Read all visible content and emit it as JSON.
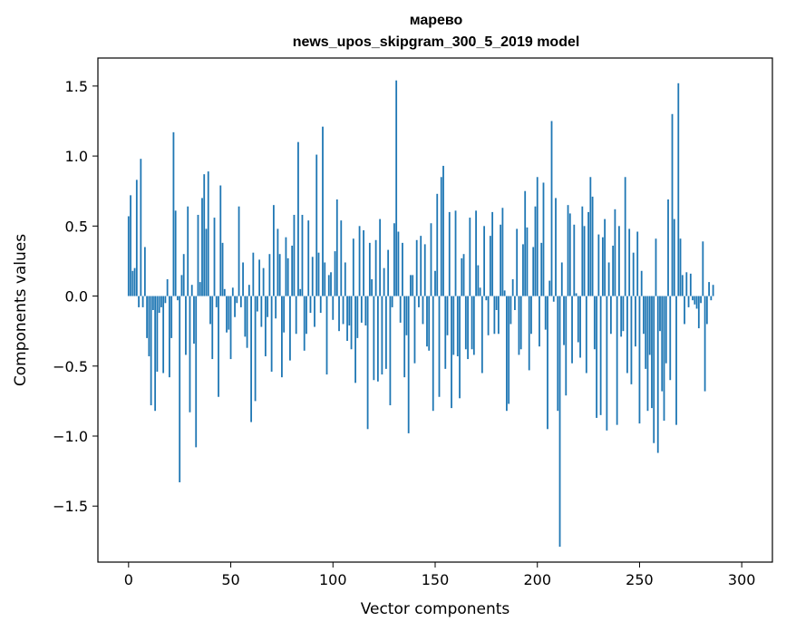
{
  "chart_data": {
    "type": "bar",
    "title": "марево",
    "subtitle": "news_upos_skipgram_300_5_2019 model",
    "xlabel": "Vector components",
    "ylabel": "Components values",
    "xlim": [
      -15,
      315
    ],
    "ylim": [
      -1.9,
      1.7
    ],
    "xticks": [
      0,
      50,
      100,
      150,
      200,
      250,
      300
    ],
    "yticks": [
      1.5,
      1.0,
      0.5,
      0.0,
      -0.5,
      -1.0,
      -1.5
    ],
    "ytick_labels": [
      "1.5",
      "1.0",
      "0.5",
      "0.0",
      "−0.5",
      "−1.0",
      "−1.5"
    ],
    "bar_color": "#1f77b4",
    "values": [
      0.57,
      0.72,
      0.18,
      0.2,
      0.83,
      -0.08,
      0.98,
      -0.08,
      0.35,
      -0.3,
      -0.43,
      -0.78,
      -0.1,
      -0.82,
      -0.54,
      -0.12,
      -0.08,
      -0.55,
      -0.05,
      0.12,
      -0.58,
      -0.3,
      1.17,
      0.61,
      -0.03,
      -1.33,
      0.15,
      0.3,
      -0.42,
      0.64,
      -0.83,
      0.08,
      -0.34,
      -1.08,
      0.58,
      0.1,
      0.7,
      0.87,
      0.48,
      0.89,
      -0.2,
      -0.45,
      0.56,
      -0.08,
      -0.72,
      0.79,
      0.38,
      0.05,
      -0.26,
      -0.24,
      -0.45,
      0.06,
      -0.15,
      -0.05,
      0.64,
      -0.08,
      0.24,
      -0.29,
      -0.37,
      0.08,
      -0.9,
      0.31,
      -0.75,
      -0.11,
      0.26,
      -0.22,
      0.2,
      -0.43,
      -0.15,
      0.3,
      -0.54,
      0.65,
      -0.16,
      0.48,
      0.3,
      -0.58,
      -0.26,
      0.42,
      0.27,
      -0.46,
      0.36,
      0.58,
      -0.27,
      1.1,
      0.05,
      0.58,
      -0.39,
      -0.27,
      0.54,
      -0.12,
      0.28,
      -0.22,
      1.01,
      0.31,
      -0.12,
      1.21,
      0.24,
      -0.56,
      0.15,
      0.17,
      -0.17,
      0.32,
      0.69,
      -0.25,
      0.54,
      -0.2,
      0.24,
      -0.32,
      -0.21,
      -0.38,
      0.41,
      -0.62,
      -0.3,
      0.5,
      -0.19,
      0.47,
      -0.21,
      -0.95,
      0.38,
      0.12,
      -0.6,
      0.4,
      -0.61,
      0.55,
      -0.56,
      0.2,
      -0.52,
      0.33,
      -0.78,
      -0.08,
      0.52,
      1.54,
      0.46,
      -0.19,
      0.38,
      -0.58,
      -0.28,
      -0.98,
      0.15,
      0.15,
      -0.48,
      0.4,
      -0.08,
      0.43,
      -0.2,
      0.37,
      -0.36,
      -0.39,
      0.52,
      -0.82,
      0.18,
      0.73,
      -0.72,
      0.85,
      0.93,
      -0.52,
      -0.28,
      0.6,
      -0.8,
      -0.42,
      0.61,
      -0.43,
      -0.73,
      0.27,
      0.3,
      -0.38,
      -0.45,
      0.56,
      -0.38,
      -0.42,
      0.61,
      0.22,
      0.06,
      -0.55,
      0.5,
      -0.03,
      -0.28,
      0.43,
      0.6,
      -0.27,
      -0.1,
      -0.27,
      0.51,
      0.63,
      0.04,
      -0.82,
      -0.77,
      -0.2,
      0.12,
      -0.1,
      0.48,
      -0.42,
      -0.38,
      0.37,
      0.75,
      0.49,
      -0.53,
      -0.27,
      0.35,
      0.64,
      0.85,
      -0.36,
      0.38,
      0.81,
      -0.24,
      -0.95,
      0.11,
      1.25,
      -0.04,
      0.7,
      -0.82,
      -1.79,
      0.24,
      -0.35,
      -0.71,
      0.65,
      0.59,
      -0.48,
      0.51,
      0.02,
      -0.33,
      -0.44,
      0.64,
      0.5,
      -0.55,
      0.6,
      0.85,
      0.71,
      -0.38,
      -0.87,
      0.44,
      -0.85,
      0.42,
      0.55,
      -0.96,
      0.24,
      -0.27,
      0.36,
      0.62,
      -0.92,
      0.5,
      -0.29,
      -0.25,
      0.85,
      -0.55,
      0.48,
      -0.63,
      0.31,
      -0.36,
      0.46,
      -0.91,
      0.18,
      -0.27,
      -0.52,
      -0.82,
      -0.42,
      -0.8,
      -1.05,
      0.41,
      -1.12,
      -0.25,
      -0.68,
      -0.89,
      -0.48,
      0.69,
      -0.6,
      1.3,
      0.55,
      -0.92,
      1.52,
      0.41,
      0.15,
      -0.2,
      0.17,
      -0.08,
      0.16,
      -0.03,
      -0.06,
      -0.09,
      -0.23,
      -0.05,
      0.39,
      -0.68,
      -0.2,
      0.1,
      -0.03,
      0.08
    ]
  }
}
